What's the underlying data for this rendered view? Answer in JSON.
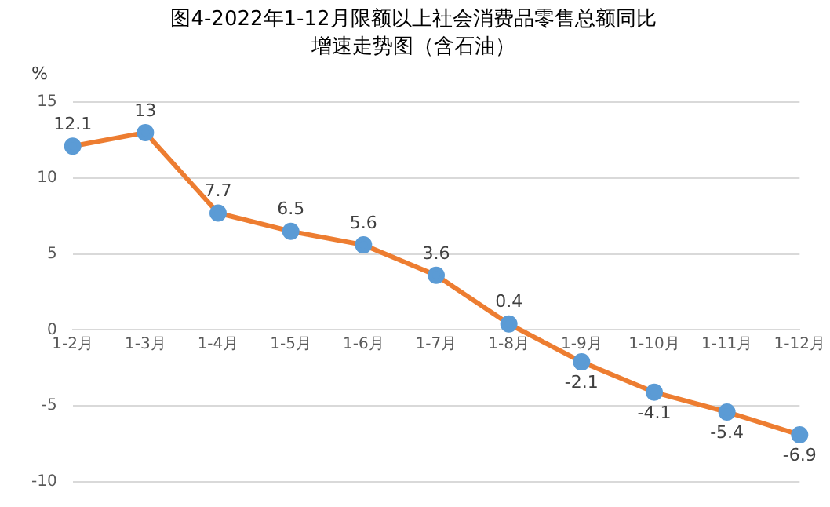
{
  "chart_data": {
    "type": "line",
    "title": "图4-2022年1-12月限额以上社会消费品零售总额同比增速走势图（含石油）",
    "ylabel": "%",
    "categories": [
      "1-2月",
      "1-3月",
      "1-4月",
      "1-5月",
      "1-6月",
      "1-7月",
      "1-8月",
      "1-9月",
      "1-10月",
      "1-11月",
      "1-12月"
    ],
    "series": [
      {
        "color": "#ed7d31",
        "colors": [
          "#5b9bd5",
          "#5b9bd5",
          "#5b9bd5",
          "#5b9bd5",
          "#5b9bd5",
          "#5b9bd5",
          "#5b9bd5",
          "#5b9bd5",
          "#5b9bd5",
          "#5b9bd5",
          "#5b9bd5"
        ],
        "values": [
          12.1,
          13,
          7.7,
          6.5,
          5.6,
          3.6,
          0.4,
          -2.1,
          -4.1,
          -5.4,
          -6.9
        ]
      }
    ],
    "ylim": [
      -10,
      15
    ],
    "yticks": [
      -10,
      -5,
      0,
      5,
      10,
      15
    ],
    "grid": "y",
    "legend": false,
    "marker": "circle",
    "line_style": "solid",
    "data_labels": true
  }
}
